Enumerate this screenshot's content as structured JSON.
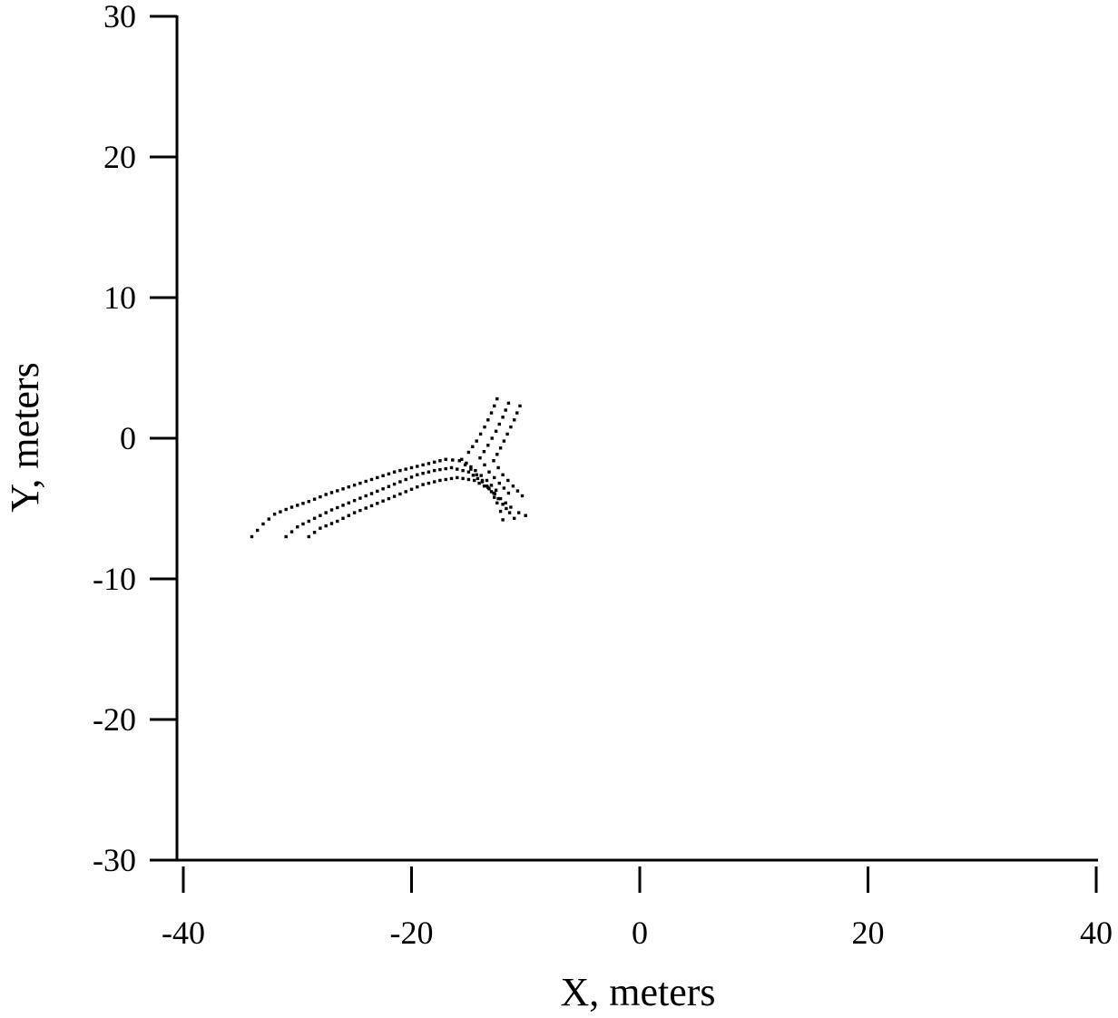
{
  "chart_data": {
    "type": "scatter",
    "title": "",
    "xlabel": "X, meters",
    "ylabel": "Y, meters",
    "xlim": [
      -40,
      40
    ],
    "ylim": [
      -30,
      30
    ],
    "xticks": [
      -40,
      -20,
      0,
      20,
      40
    ],
    "yticks": [
      -30,
      -20,
      -10,
      0,
      10,
      20,
      30
    ],
    "xtick_labels": [
      "-40",
      "-20",
      "0",
      "20",
      "40"
    ],
    "ytick_labels": [
      "-30",
      "-20",
      "-10",
      "0",
      "10",
      "20",
      "30"
    ],
    "grid": false,
    "legend": "none",
    "marker_color": "#000000",
    "series": [
      {
        "tracks": [
          [
            [
              -34,
              -7
            ],
            [
              -33,
              -6.1
            ],
            [
              -32,
              -5.4
            ],
            [
              -30.5,
              -4.9
            ],
            [
              -29,
              -4.5
            ],
            [
              -27.5,
              -4
            ],
            [
              -26,
              -3.6
            ],
            [
              -24.5,
              -3.2
            ],
            [
              -23,
              -2.8
            ],
            [
              -21.5,
              -2.4
            ],
            [
              -20,
              -2.1
            ],
            [
              -18.5,
              -1.8
            ],
            [
              -17,
              -1.5
            ],
            [
              -15.8,
              -1.6
            ],
            [
              -14.8,
              -2.2
            ],
            [
              -13.8,
              -3
            ],
            [
              -13,
              -3.8
            ],
            [
              -12.5,
              -4.6
            ],
            [
              -12.2,
              -5.2
            ],
            [
              -12,
              -5.8
            ]
          ],
          [
            [
              -31,
              -7
            ],
            [
              -30,
              -6.3
            ],
            [
              -28.5,
              -5.7
            ],
            [
              -27,
              -5.1
            ],
            [
              -25.5,
              -4.6
            ],
            [
              -24,
              -4.1
            ],
            [
              -22.5,
              -3.6
            ],
            [
              -21,
              -3.1
            ],
            [
              -19.5,
              -2.6
            ],
            [
              -18,
              -2.3
            ],
            [
              -16.5,
              -2.1
            ],
            [
              -15,
              -2.4
            ],
            [
              -13.8,
              -3.1
            ],
            [
              -12.8,
              -3.9
            ],
            [
              -12,
              -4.7
            ],
            [
              -11.4,
              -5.3
            ],
            [
              -11,
              -5.7
            ]
          ],
          [
            [
              -29,
              -7
            ],
            [
              -28,
              -6.4
            ],
            [
              -26.5,
              -5.9
            ],
            [
              -25,
              -5.3
            ],
            [
              -23.5,
              -4.8
            ],
            [
              -22,
              -4.3
            ],
            [
              -20.5,
              -3.8
            ],
            [
              -19,
              -3.3
            ],
            [
              -17.5,
              -3
            ],
            [
              -16,
              -2.8
            ],
            [
              -14.5,
              -3
            ],
            [
              -13.2,
              -3.6
            ],
            [
              -12.2,
              -4.3
            ],
            [
              -11.3,
              -4.9
            ],
            [
              -10.6,
              -5.3
            ],
            [
              -10,
              -5.5
            ]
          ],
          [
            [
              -12.5,
              2.8
            ],
            [
              -13,
              1.8
            ],
            [
              -13.6,
              0.8
            ],
            [
              -14.3,
              -0.2
            ],
            [
              -15,
              -1
            ],
            [
              -15.6,
              -1.5
            ],
            [
              -14.4,
              -2.3
            ],
            [
              -13.4,
              -3
            ],
            [
              -12.6,
              -3.7
            ]
          ],
          [
            [
              -11.5,
              2.5
            ],
            [
              -12,
              1.5
            ],
            [
              -12.6,
              0.5
            ],
            [
              -13.3,
              -0.5
            ],
            [
              -14,
              -1.4
            ],
            [
              -13.2,
              -2.4
            ],
            [
              -12.3,
              -3.2
            ],
            [
              -11.5,
              -3.9
            ]
          ],
          [
            [
              -10.5,
              2.3
            ],
            [
              -11,
              1.3
            ],
            [
              -11.6,
              0.3
            ],
            [
              -12.2,
              -0.7
            ],
            [
              -12.8,
              -1.6
            ],
            [
              -12,
              -2.6
            ],
            [
              -11.1,
              -3.4
            ],
            [
              -10.3,
              -4.1
            ]
          ]
        ]
      }
    ]
  }
}
